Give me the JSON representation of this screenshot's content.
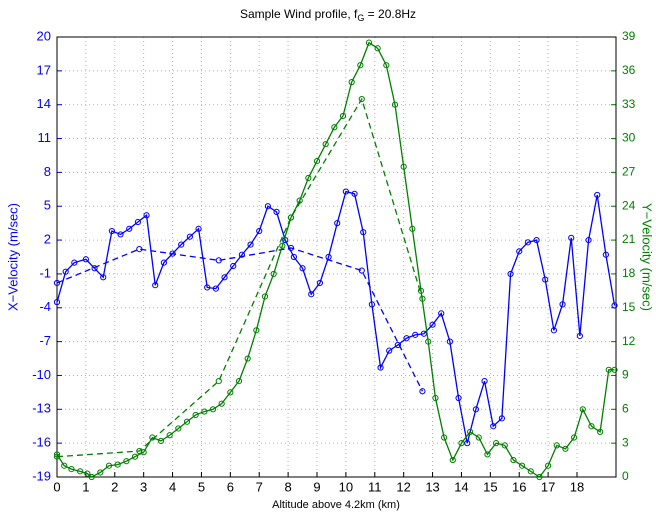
{
  "chart_data": {
    "type": "line",
    "title": "Sample Wind profile, f",
    "title_subscript": "G",
    "title_end": " = 20.8Hz",
    "xlabel": "Altitude above 4.2km (km)",
    "ylabel": "X−Velocity (m/sec)",
    "y2label": "Y−Velocity (m/sec)",
    "xlim": [
      0,
      19.35
    ],
    "xticks": [
      0,
      1,
      2,
      3,
      4,
      5,
      6,
      7,
      8,
      9,
      10,
      11,
      12,
      13,
      14,
      15,
      16,
      17,
      18
    ],
    "ylim": [
      -19,
      20
    ],
    "yticks": [
      -19,
      -16,
      -13,
      -10,
      -7,
      -4,
      -1,
      2,
      5,
      8,
      11,
      14,
      17,
      20
    ],
    "y2lim": [
      0,
      39
    ],
    "y2ticks": [
      0,
      3,
      6,
      9,
      12,
      15,
      18,
      21,
      24,
      27,
      30,
      33,
      36,
      39
    ],
    "ycolor": "#0000ff",
    "y2color": "#008000",
    "grid": true,
    "series": [
      {
        "color": "#0000ff",
        "style": "solid",
        "x": [
          0,
          0.3,
          0.6,
          1.0,
          1.3,
          1.6,
          1.9,
          2.2,
          2.5,
          2.8,
          3.1,
          3.4,
          3.7,
          4.0,
          4.3,
          4.6,
          4.9,
          5.2,
          5.5,
          5.8,
          6.1,
          6.4,
          6.7,
          7.0,
          7.3,
          7.6,
          7.9,
          8.2,
          8.5,
          8.8,
          9.1,
          9.4,
          9.7,
          10.0,
          10.3,
          10.6,
          10.9,
          11.2,
          11.5,
          11.8,
          12.1,
          12.4,
          12.7,
          13.0,
          13.3,
          13.6,
          13.9,
          14.2,
          14.5,
          14.8,
          15.1,
          15.4,
          15.7,
          16.0,
          16.3,
          16.6,
          16.9,
          17.2,
          17.5,
          17.8,
          18.1,
          18.4,
          18.7,
          19.0,
          19.3
        ],
        "values": [
          -3.5,
          -0.8,
          0.0,
          0.3,
          -0.5,
          -1.3,
          2.8,
          2.5,
          3.0,
          3.6,
          4.2,
          -2.0,
          0.0,
          0.8,
          1.6,
          2.3,
          3.0,
          -2.2,
          -2.3,
          -1.3,
          -0.3,
          0.7,
          1.6,
          2.8,
          5.0,
          4.5,
          2.0,
          0.5,
          -0.5,
          -2.8,
          -1.8,
          0.5,
          3.5,
          6.3,
          6.1,
          2.7,
          -3.7,
          -9.3,
          -7.8,
          -7.3,
          -6.7,
          -6.4,
          -6.3,
          -5.5,
          -4.5,
          -7.0,
          -12.0,
          -16.0,
          -13.0,
          -10.5,
          -14.5,
          -13.8,
          -1.0,
          1.0,
          1.8,
          2.0,
          -1.5,
          -6.0,
          -3.7,
          2.2,
          -6.5,
          2.0,
          6.0,
          0.7,
          -3.8
        ]
      },
      {
        "color": "#0000ff",
        "style": "dashed",
        "x": [
          0,
          2.85,
          5.6,
          8.1,
          10.55,
          12.65
        ],
        "values": [
          -1.8,
          1.2,
          0.2,
          1.3,
          -0.7,
          -11.4
        ]
      },
      {
        "color": "#008000",
        "style": "solid",
        "axis": "y2",
        "x": [
          0,
          0.25,
          0.5,
          0.8,
          1.05,
          1.2,
          1.5,
          1.8,
          2.1,
          2.4,
          2.7,
          3.0,
          3.3,
          3.6,
          3.9,
          4.2,
          4.5,
          4.8,
          5.1,
          5.4,
          5.7,
          6.0,
          6.3,
          6.6,
          6.9,
          7.2,
          7.5,
          7.8,
          8.1,
          8.4,
          8.7,
          9.0,
          9.3,
          9.6,
          9.9,
          10.2,
          10.5,
          10.8,
          11.1,
          11.4,
          11.7,
          12.0,
          12.3,
          12.6,
          12.85,
          13.1,
          13.4,
          13.7,
          14.0,
          14.3,
          14.6,
          14.9,
          15.2,
          15.5,
          15.8,
          16.1,
          16.4,
          16.7,
          17.0,
          17.3,
          17.6,
          17.9,
          18.2,
          18.5,
          18.8,
          19.1,
          19.3
        ],
        "values": [
          2.0,
          1.0,
          0.7,
          0.5,
          0.3,
          0.0,
          0.4,
          1.0,
          1.1,
          1.4,
          1.8,
          2.2,
          3.5,
          3.2,
          3.7,
          4.3,
          4.9,
          5.5,
          5.8,
          6.0,
          6.5,
          7.5,
          8.5,
          10.5,
          13.0,
          16.0,
          18.0,
          20.5,
          23.0,
          24.5,
          26.5,
          28.0,
          29.5,
          31.0,
          32.0,
          35.0,
          36.5,
          38.5,
          38.0,
          36.5,
          33.0,
          27.5,
          22.0,
          16.5,
          12.0,
          7.0,
          3.5,
          1.5,
          3.0,
          4.0,
          3.5,
          2.0,
          3.0,
          2.8,
          1.5,
          1.0,
          0.5,
          0.0,
          1.0,
          2.8,
          2.5,
          3.5,
          6.0,
          4.5,
          4.0,
          9.5,
          9.5
        ]
      },
      {
        "color": "#008000",
        "style": "dashed",
        "axis": "y2",
        "x": [
          0,
          2.85,
          5.6,
          8.1,
          10.55,
          12.65
        ],
        "values": [
          1.8,
          2.3,
          8.5,
          23.0,
          33.5,
          15.8
        ]
      }
    ]
  }
}
